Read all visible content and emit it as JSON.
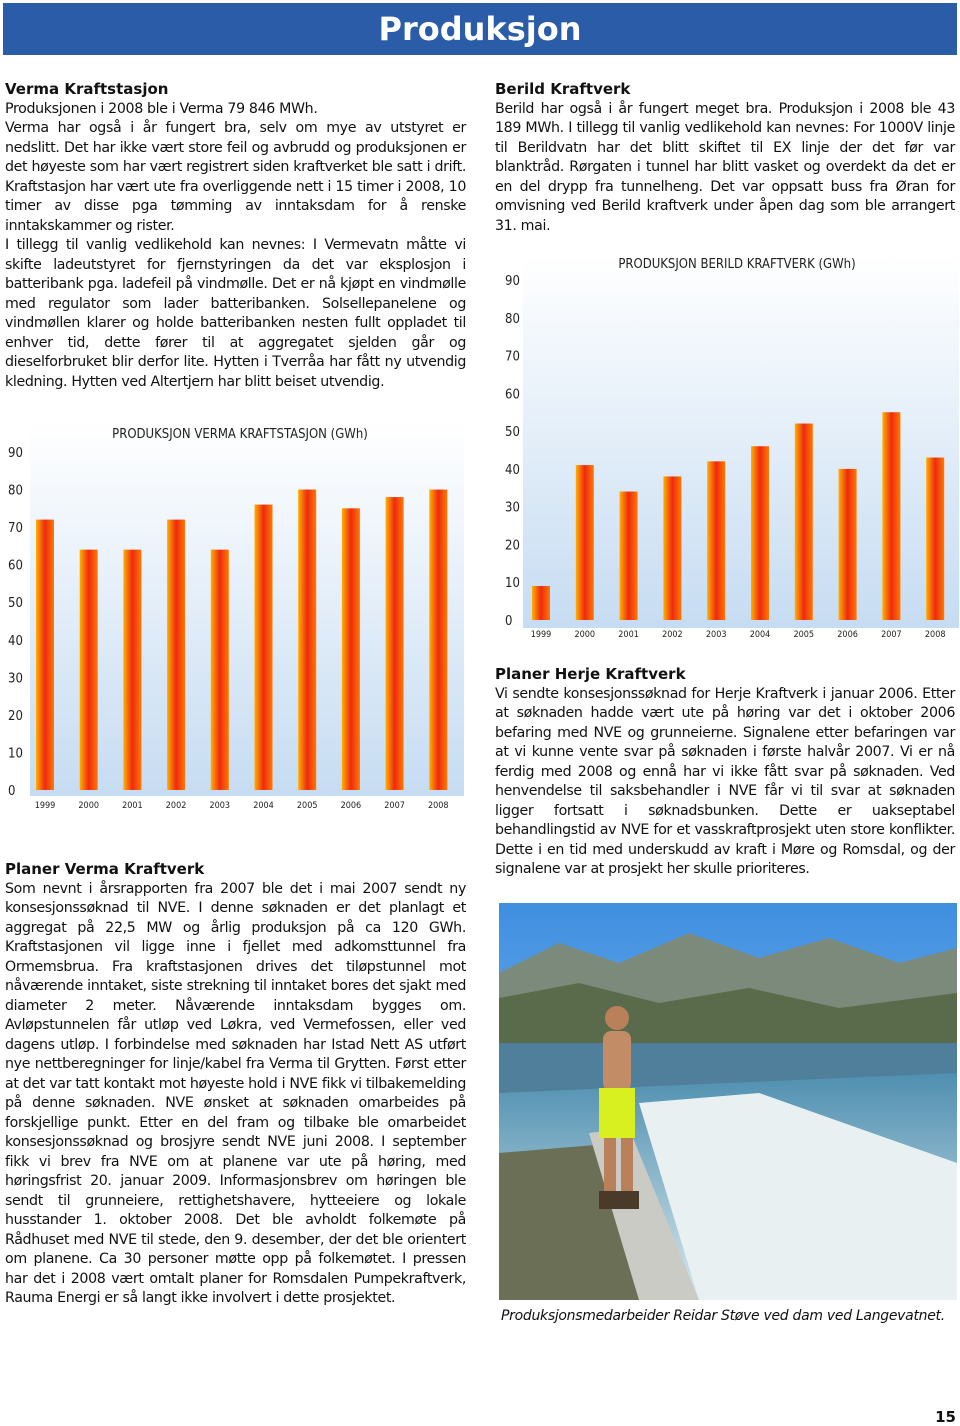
{
  "header": {
    "title": "Produksjon"
  },
  "verma": {
    "heading": "Verma Kraftstasjon",
    "paragraphs": [
      "Produksjonen i 2008 ble i Verma 79 846 MWh.",
      "Verma har også i år fungert bra, selv om mye av utstyret er nedslitt. Det har ikke vært store feil og avbrudd og produksjonen er det høyeste som har vært registrert siden kraftverket ble satt i drift. Kraftstasjon har vært ute fra overliggende nett i 15 timer i 2008, 10 timer av disse pga tømming av inntaksdam for å renske inntakskammer og rister.",
      "I tillegg til vanlig vedlikehold kan nevnes: I Vermevatn måtte vi skifte ladeutstyret for fjernstyringen da det var eksplosjon i batteribank pga. ladefeil på vindmølle. Det er nå kjøpt en vindmølle med regulator som lader batteribanken. Solsellepanelene og vindmøllen klarer og holde batteribanken nesten fullt oppladet til enhver tid, dette fører til at aggregatet sjelden går og dieselforbruket blir derfor lite. Hytten i Tverråa har fått ny utvendig kledning. Hytten ved Altertjern har blitt beiset utvendig."
    ]
  },
  "planer_verma": {
    "heading": "Planer Verma Kraftverk",
    "text": "Som nevnt i årsrapporten fra 2007 ble det i mai 2007 sendt ny konsesjonssøknad til NVE. I denne søknaden er det planlagt et aggregat på 22,5 MW og årlig produksjon på ca 120 GWh. Kraftstasjonen vil ligge inne i fjellet med adkomsttunnel fra Ormemsbrua. Fra kraftstasjonen drives det tiløpstunnel mot nåværende inntaket, siste strekning til inntaket bores det sjakt med diameter 2 meter. Nåværende inntaksdam bygges om. Avløpstunnelen får utløp ved Løkra, ved Vermefossen, eller ved dagens utløp. I forbindelse med søknaden har Istad Nett AS utført nye nettberegninger for linje/kabel fra Verma til Grytten. Først etter at det var tatt kontakt mot høyeste hold i NVE fikk vi tilbakemelding på denne søknaden. NVE ønsket at søknaden omarbeides på forskjellige punkt. Etter en del fram og tilbake ble omarbeidet konsesjonssøknad og brosjyre sendt NVE juni 2008. I september fikk vi brev fra NVE om at planene var ute på høring, med høringsfrist 20. januar 2009. Informasjonsbrev om høringen ble sendt til grunneiere, rettighetshavere, hytteeiere og lokale husstander 1. oktober 2008. Det ble avholdt folkemøte på Rådhuset med NVE til stede, den 9. desember, der det ble orientert om planene. Ca 30 personer møtte opp på folkemøtet. I pressen har det i 2008 vært omtalt planer for Romsdalen Pumpekraftverk, Rauma Energi er så langt ikke involvert i dette prosjektet."
  },
  "berild": {
    "heading": "Berild Kraftverk",
    "text": "Berild har også i år fungert meget bra. Produksjon i 2008 ble 43 189 MWh. I tillegg til vanlig vedlikehold kan nevnes: For 1000V linje til Berildvatn har det blitt skiftet til EX linje der det før var blanktråd. Rørgaten i tunnel har blitt vasket og overdekt da det er en del drypp fra tunnelheng. Det var oppsatt buss fra Øran for omvisning ved Berild kraftverk under åpen dag som ble arrangert 31. mai."
  },
  "planer_herje": {
    "heading": "Planer Herje Kraftverk",
    "text": "Vi sendte konsesjonssøknad for Herje Kraftverk i januar 2006. Etter at søknaden hadde vært ute på høring var det i oktober 2006 befaring med NVE og grunneierne. Signalene etter befaringen var at vi kunne vente svar på søknaden i første halvår 2007. Vi er nå ferdig med 2008 og ennå har vi ikke fått svar på søknaden. Ved henvendelse til saksbehandler i NVE får vi til svar at søknaden ligger fortsatt i søknadsbunken. Dette er uakseptabel behandlingstid av NVE for et vasskraftprosjekt uten store konflikter. Dette i en tid med underskudd av kraft i Møre og Romsdal, og der signalene var at prosjekt her skulle prioriteres."
  },
  "photo_caption": "Produksjonsmedarbeider Reidar Støve ved dam ved Langevatnet.",
  "page_number": "15",
  "chart_data": [
    {
      "type": "bar",
      "title": "PRODUKSJON VERMA KRAFTSTASJON (GWh)",
      "categories": [
        "1999",
        "2000",
        "2001",
        "2002",
        "2003",
        "2004",
        "2005",
        "2006",
        "2007",
        "2008"
      ],
      "values": [
        72,
        64,
        64,
        72,
        64,
        76,
        80,
        75,
        78,
        80
      ],
      "color": "#ee2a10",
      "ylim": [
        0,
        90
      ],
      "yticks": [
        0,
        10,
        20,
        30,
        40,
        50,
        60,
        70,
        80,
        90
      ]
    },
    {
      "type": "bar",
      "title": "PRODUKSJON BERILD KRAFTVERK (GWh)",
      "categories": [
        "1999",
        "2000",
        "2001",
        "2002",
        "2003",
        "2004",
        "2005",
        "2006",
        "2007",
        "2008"
      ],
      "values": [
        9,
        41,
        34,
        38,
        42,
        46,
        52,
        40,
        55,
        43
      ],
      "color": "#ee2a10",
      "ylim": [
        0,
        90
      ],
      "yticks": [
        0,
        10,
        20,
        30,
        40,
        50,
        60,
        70,
        80,
        90
      ]
    }
  ]
}
